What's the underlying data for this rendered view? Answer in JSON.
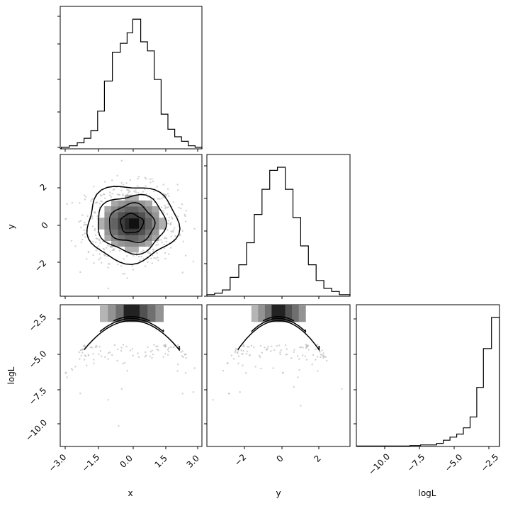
{
  "chart_data": [
    {
      "panel": "x-marginal",
      "type": "histogram",
      "xlim": [
        -3.15,
        3.1
      ],
      "bins": [
        [
          -3.1,
          -2.75,
          1
        ],
        [
          -2.75,
          -2.4,
          2
        ],
        [
          -2.4,
          -2.1,
          4
        ],
        [
          -2.1,
          -1.8,
          7
        ],
        [
          -1.8,
          -1.5,
          12
        ],
        [
          -1.5,
          -1.2,
          25
        ],
        [
          -1.2,
          -0.85,
          45
        ],
        [
          -0.85,
          -0.5,
          64
        ],
        [
          -0.5,
          -0.2,
          70
        ],
        [
          -0.2,
          0.05,
          77
        ],
        [
          0.05,
          0.4,
          86
        ],
        [
          0.4,
          0.7,
          71
        ],
        [
          0.7,
          1.0,
          65
        ],
        [
          1.0,
          1.3,
          46
        ],
        [
          1.3,
          1.6,
          23
        ],
        [
          1.6,
          1.9,
          13
        ],
        [
          1.9,
          2.2,
          8
        ],
        [
          2.2,
          2.5,
          5
        ],
        [
          2.5,
          2.8,
          2
        ],
        [
          2.8,
          3.1,
          1
        ]
      ]
    },
    {
      "panel": "y-vs-x",
      "type": "2d-histogram-contour",
      "ylabel": "y",
      "xlim": [
        -3.15,
        3.1
      ],
      "ylim": [
        -3.8,
        3.6
      ],
      "yticks": [
        "2",
        "0",
        "−2"
      ],
      "center": [
        0.0,
        0.0
      ],
      "contour_levels_sigma": [
        0.5,
        1.0,
        1.5,
        2.0
      ]
    },
    {
      "panel": "y-marginal",
      "type": "histogram",
      "xlim": [
        -3.7,
        3.7
      ],
      "bins": [
        [
          -3.7,
          -3.3,
          1
        ],
        [
          -3.3,
          -2.9,
          2
        ],
        [
          -2.9,
          -2.5,
          4
        ],
        [
          -2.5,
          -2.05,
          12
        ],
        [
          -2.05,
          -1.65,
          20
        ],
        [
          -1.65,
          -1.25,
          34
        ],
        [
          -1.25,
          -0.85,
          52
        ],
        [
          -0.85,
          -0.45,
          68
        ],
        [
          -0.45,
          -0.05,
          80
        ],
        [
          -0.05,
          0.35,
          82
        ],
        [
          0.35,
          0.75,
          68
        ],
        [
          0.75,
          1.15,
          50
        ],
        [
          1.15,
          1.55,
          32
        ],
        [
          1.55,
          1.95,
          20
        ],
        [
          1.95,
          2.35,
          10
        ],
        [
          2.35,
          2.75,
          5
        ],
        [
          2.75,
          3.15,
          3
        ],
        [
          3.15,
          3.7,
          1
        ]
      ]
    },
    {
      "panel": "logL-vs-x",
      "type": "2d-histogram-contour",
      "xlabel": "x",
      "ylabel": "logL",
      "xlim": [
        -3.15,
        3.1
      ],
      "ylim": [
        -12.0,
        -1.3
      ],
      "xticks": [
        "−3.0",
        "−1.5",
        "0.0",
        "1.5",
        "3.0"
      ],
      "yticks": [
        "−2.5",
        "−5.0",
        "−7.5",
        "−10.0"
      ]
    },
    {
      "panel": "logL-vs-y",
      "type": "2d-histogram-contour",
      "xlabel": "y",
      "xlim": [
        -3.7,
        3.7
      ],
      "ylim": [
        -12.0,
        -1.3
      ],
      "xticks": [
        "−2",
        "0",
        "2"
      ]
    },
    {
      "panel": "logL-marginal",
      "type": "histogram",
      "xlabel": "logL",
      "xlim": [
        -12.0,
        -1.3
      ],
      "xticks": [
        "−10.0",
        "−7.5",
        "−5.0",
        "−2.5"
      ],
      "bins": [
        [
          -12.0,
          -8.0,
          0.3
        ],
        [
          -8.0,
          -7.2,
          0.6
        ],
        [
          -7.2,
          -6.0,
          1
        ],
        [
          -6.0,
          -5.5,
          2
        ],
        [
          -5.5,
          -5.0,
          4
        ],
        [
          -5.0,
          -4.5,
          6
        ],
        [
          -4.5,
          -4.0,
          8
        ],
        [
          -4.0,
          -3.5,
          12
        ],
        [
          -3.5,
          -3.0,
          19
        ],
        [
          -3.0,
          -2.5,
          38
        ],
        [
          -2.5,
          -1.9,
          63
        ],
        [
          -1.9,
          -1.3,
          83
        ]
      ]
    }
  ]
}
